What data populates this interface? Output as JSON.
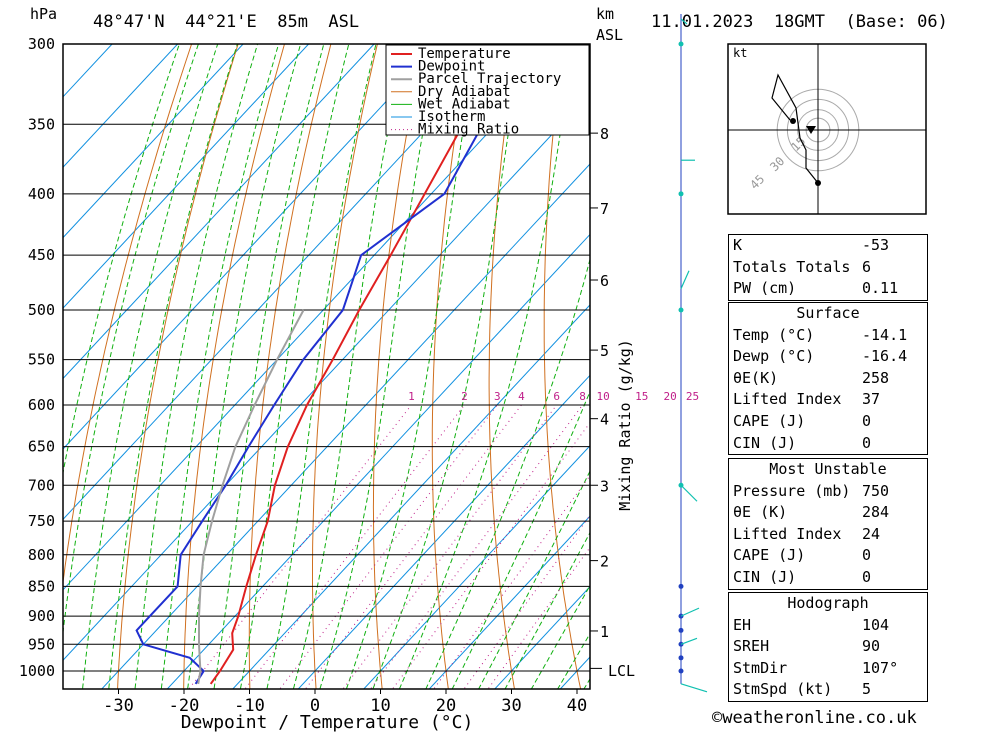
{
  "header": {
    "location": "48°47'N  44°21'E  85m  ASL",
    "datetime": "11.01.2023  18GMT  (Base: 06)",
    "pressure_unit": "hPa",
    "km_label": "km",
    "asl_label": "ASL"
  },
  "legend": [
    "Temperature",
    "Dewpoint",
    "Parcel Trajectory",
    "Dry Adiabat",
    "Wet Adiabat",
    "Isotherm",
    "Mixing Ratio"
  ],
  "colors": {
    "temperature": "#e02020",
    "dewpoint": "#2030d0",
    "parcel": "#a0a0a0",
    "dry_adiabat": "#d07020",
    "wet_adiabat": "#10b010",
    "isotherm": "#1090e0",
    "mixing_ratio": "#c0208a",
    "wind": "#10c0b0"
  },
  "chart_data": {
    "type": "line",
    "xlabel": "Dewpoint / Temperature (°C)",
    "ylabel": "hPa",
    "x_ticks": [
      -30,
      -20,
      -10,
      0,
      10,
      20,
      30,
      40
    ],
    "y_ticks": [
      300,
      350,
      400,
      450,
      500,
      550,
      600,
      650,
      700,
      750,
      800,
      850,
      900,
      950,
      1000
    ],
    "xlim": [
      -38,
      41
    ],
    "ylim": [
      1050,
      300
    ],
    "skew": true,
    "km_ticks": [
      {
        "km": "1",
        "p": 926
      },
      {
        "km": "2",
        "p": 809
      },
      {
        "km": "3",
        "p": 700
      },
      {
        "km": "4",
        "p": 616
      },
      {
        "km": "5",
        "p": 540
      },
      {
        "km": "6",
        "p": 472
      },
      {
        "km": "7",
        "p": 411
      },
      {
        "km": "8",
        "p": 356
      }
    ],
    "lcl_label": "LCL",
    "lcl_p": 995,
    "mixing_ratio_label": "Mixing Ratio (g/kg)",
    "mixing_ratio_values": [
      "1",
      "2",
      "3",
      "4",
      "6",
      "8",
      "10",
      "15",
      "20",
      "25"
    ],
    "series": [
      {
        "name": "Temperature",
        "points": [
          [
            1025,
            -14.1
          ],
          [
            1000,
            -14.5
          ],
          [
            960,
            -15.5
          ],
          [
            930,
            -18
          ],
          [
            900,
            -19.5
          ],
          [
            850,
            -22.5
          ],
          [
            800,
            -25.5
          ],
          [
            750,
            -28.5
          ],
          [
            700,
            -32.5
          ],
          [
            650,
            -36
          ],
          [
            600,
            -39
          ],
          [
            550,
            -41.5
          ],
          [
            500,
            -44.5
          ],
          [
            450,
            -47.5
          ],
          [
            400,
            -51
          ],
          [
            350,
            -55
          ],
          [
            300,
            -60
          ]
        ]
      },
      {
        "name": "Dewpoint",
        "points": [
          [
            1025,
            -16.4
          ],
          [
            1000,
            -17
          ],
          [
            975,
            -21
          ],
          [
            950,
            -30
          ],
          [
            925,
            -33
          ],
          [
            900,
            -33
          ],
          [
            850,
            -33
          ],
          [
            800,
            -37
          ],
          [
            750,
            -38.5
          ],
          [
            700,
            -40
          ],
          [
            650,
            -42
          ],
          [
            600,
            -44
          ],
          [
            550,
            -46
          ],
          [
            500,
            -47
          ],
          [
            450,
            -52
          ],
          [
            400,
            -48
          ],
          [
            350,
            -52
          ],
          [
            300,
            -58
          ]
        ]
      },
      {
        "name": "Parcel Trajectory",
        "points": [
          [
            1025,
            -16
          ],
          [
            1000,
            -17.5
          ],
          [
            950,
            -21.5
          ],
          [
            900,
            -25.5
          ],
          [
            850,
            -29.5
          ],
          [
            800,
            -33.5
          ],
          [
            750,
            -37
          ],
          [
            700,
            -40.5
          ],
          [
            650,
            -44
          ],
          [
            600,
            -47
          ],
          [
            550,
            -50
          ],
          [
            500,
            -53
          ]
        ]
      }
    ],
    "hodograph_labels": [
      "kt",
      "15",
      "30",
      "45"
    ],
    "wind_profile_p": [
      300,
      400,
      500,
      700,
      850,
      900,
      925,
      950,
      975,
      1000
    ]
  },
  "indices": {
    "k_label": "K",
    "k": "-53",
    "tt_label": "Totals Totals",
    "tt": "6",
    "pw_label": "PW (cm)",
    "pw": "0.11"
  },
  "surface": {
    "title": "Surface",
    "temp_label": "Temp (°C)",
    "temp": "-14.1",
    "dewp_label": "Dewp (°C)",
    "dewp": "-16.4",
    "theta_label": "θE(K)",
    "theta": "258",
    "li_label": "Lifted Index",
    "li": "37",
    "cape_label": "CAPE (J)",
    "cape": "0",
    "cin_label": "CIN (J)",
    "cin": "0"
  },
  "most_unstable": {
    "title": "Most Unstable",
    "pressure_label": "Pressure (mb)",
    "pressure": "750",
    "theta_label": "θE (K)",
    "theta": "284",
    "li_label": "Lifted Index",
    "li": "24",
    "cape_label": "CAPE (J)",
    "cape": "0",
    "cin_label": "CIN (J)",
    "cin": "0"
  },
  "hodograph": {
    "title": "Hodograph",
    "eh_label": "EH",
    "eh": "104",
    "sreh_label": "SREH",
    "sreh": "90",
    "stmdir_label": "StmDir",
    "stmdir": "107°",
    "stmspd_label": "StmSpd (kt)",
    "stmspd": "5"
  },
  "footer": {
    "copyright": "©weatheronline.co.uk"
  }
}
